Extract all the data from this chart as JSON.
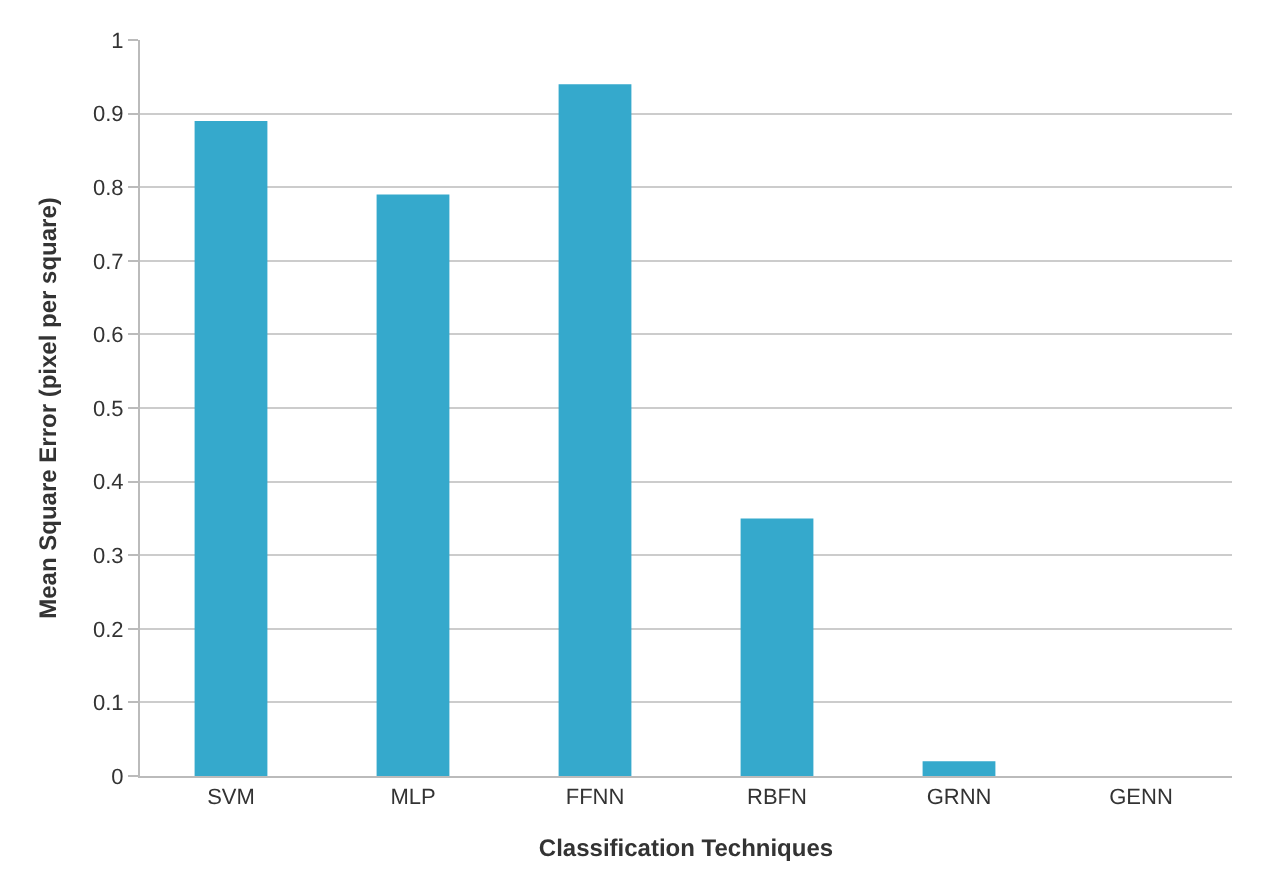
{
  "chart_data": {
    "type": "bar",
    "xlabel": "Classification Techniques",
    "ylabel": "Mean Square Error (pixel per square)",
    "categories": [
      "SVM",
      "MLP",
      "FFNN",
      "RBFN",
      "GRNN",
      "GENN"
    ],
    "values": [
      0.89,
      0.79,
      0.94,
      0.35,
      0.02,
      0
    ],
    "color": "#35a9cc",
    "ylim": [
      0,
      1
    ],
    "yticks": [
      0,
      0.1,
      0.2,
      0.3,
      0.4,
      0.5,
      0.6,
      0.7,
      0.8,
      0.9,
      1
    ],
    "grid": "y"
  }
}
